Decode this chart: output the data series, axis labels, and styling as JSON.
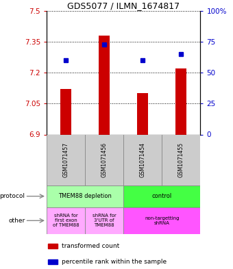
{
  "title": "GDS5077 / ILMN_1674817",
  "samples": [
    "GSM1071457",
    "GSM1071456",
    "GSM1071454",
    "GSM1071455"
  ],
  "bar_values": [
    7.12,
    7.38,
    7.1,
    7.22
  ],
  "bar_bottom": 6.9,
  "blue_values": [
    60,
    73,
    60,
    65
  ],
  "ylim": [
    6.9,
    7.5
  ],
  "yticks_left": [
    6.9,
    7.05,
    7.2,
    7.35,
    7.5
  ],
  "yticks_right": [
    0,
    25,
    50,
    75,
    100
  ],
  "right_ylim": [
    0,
    100
  ],
  "bar_color": "#cc0000",
  "blue_color": "#0000cc",
  "protocol_row": [
    {
      "label": "TMEM88 depletion",
      "cols": [
        0,
        1
      ],
      "color": "#aaffaa"
    },
    {
      "label": "control",
      "cols": [
        2,
        3
      ],
      "color": "#44ff44"
    }
  ],
  "other_row": [
    {
      "label": "shRNA for\nfirst exon\nof TMEM88",
      "cols": [
        0
      ],
      "color": "#ffaaff"
    },
    {
      "label": "shRNA for\n3'UTR of\nTMEM88",
      "cols": [
        1
      ],
      "color": "#ffaaff"
    },
    {
      "label": "non-targetting\nshRNA",
      "cols": [
        2,
        3
      ],
      "color": "#ff55ff"
    }
  ],
  "legend_items": [
    {
      "color": "#cc0000",
      "label": "transformed count"
    },
    {
      "color": "#0000cc",
      "label": "percentile rank within the sample"
    }
  ],
  "left_label_color": "#cc0000",
  "right_label_color": "#0000cc",
  "background_color": "#ffffff"
}
